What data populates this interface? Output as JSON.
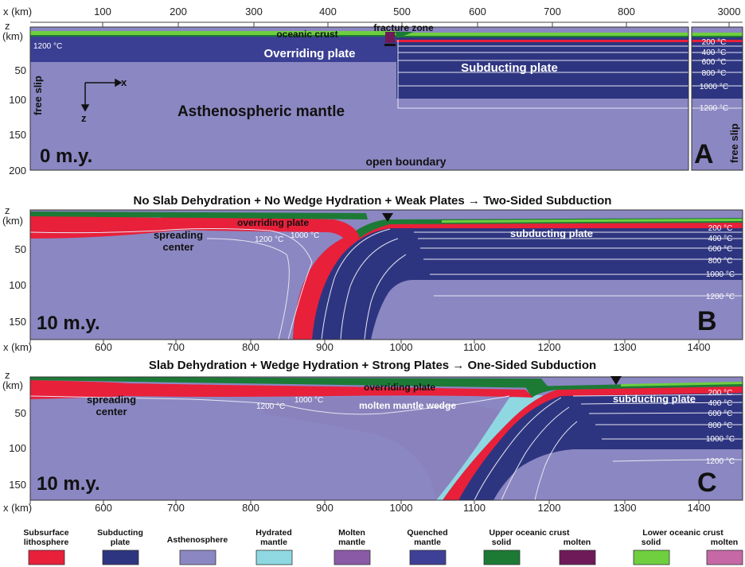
{
  "panel_a": {
    "x_axis_label": "x (km)",
    "x_ticks": [
      "100",
      "200",
      "300",
      "400",
      "500",
      "600",
      "700",
      "800"
    ],
    "x_tick_far": "3000",
    "z_axis_label_z": "z",
    "z_axis_label_km": "(km)",
    "z_ticks": [
      "50",
      "100",
      "150",
      "200"
    ],
    "labels": {
      "oceanic_crust": "oceanic crust",
      "fracture_zone": "fracture zone",
      "overriding_plate": "Overriding plate",
      "subducting_plate": "Subducting plate",
      "asthenospheric_mantle": "Asthenospheric mantle",
      "free_slip_left": "free slip",
      "free_slip_right": "free slip",
      "open_boundary": "open boundary",
      "axis_x": "x",
      "axis_z": "z",
      "temp_1200": "1200 °C"
    },
    "isotherms": [
      "200 °C",
      "400 °C",
      "600 °C",
      "800 °C",
      "1000 °C",
      "1200 °C"
    ],
    "time": "0 m.y.",
    "letter": "A"
  },
  "panel_b": {
    "title": "No Slab Dehydration + No Wedge Hydration + Weak Plates → Two-Sided Subduction",
    "z_axis_label_z": "z",
    "z_axis_label_km": "(km)",
    "z_ticks": [
      "50",
      "100",
      "150"
    ],
    "x_axis_label": "x (km)",
    "x_ticks": [
      "600",
      "700",
      "800",
      "900",
      "1000",
      "1100",
      "1200",
      "1300",
      "1400"
    ],
    "labels": {
      "spreading_center": "spreading center",
      "overriding_plate": "overriding plate",
      "subducting_plate": "subducting plate",
      "temp_1200": "1200 °C",
      "temp_1000": "1000 °C"
    },
    "isotherms": [
      "200 °C",
      "400 °C",
      "600 °C",
      "800 °C",
      "1000 °C",
      "1200 °C"
    ],
    "time": "10 m.y.",
    "letter": "B"
  },
  "panel_c": {
    "title": "Slab Dehydration + Wedge Hydration + Strong Plates → One-Sided Subduction",
    "z_axis_label_z": "z",
    "z_axis_label_km": "(km)",
    "z_ticks": [
      "50",
      "100",
      "150"
    ],
    "x_axis_label": "x (km)",
    "x_ticks": [
      "600",
      "700",
      "800",
      "900",
      "1000",
      "1100",
      "1200",
      "1300",
      "1400"
    ],
    "labels": {
      "spreading_center": "spreading center",
      "overriding_plate": "overriding plate",
      "molten_mantle_wedge": "molten mantle wedge",
      "subducting_plate": "subducting plate",
      "temp_1200": "1200 °C",
      "temp_1000": "1000 °C"
    },
    "isotherms": [
      "200 °C",
      "400 °C",
      "600 °C",
      "800 °C",
      "1000 °C",
      "1200 °C"
    ],
    "time": "10 m.y.",
    "letter": "C"
  },
  "legend": [
    {
      "line1": "Subsurface",
      "line2": "lithosphere",
      "color": "#e8203a"
    },
    {
      "line1": "Subducting",
      "line2": "plate",
      "color": "#2e3580"
    },
    {
      "line1": "Asthenosphere",
      "line2": "",
      "color": "#8b87c2"
    },
    {
      "line1": "Hydrated",
      "line2": "mantle",
      "color": "#8fd8e2"
    },
    {
      "line1": "Molten",
      "line2": "mantle",
      "color": "#8a5aa6"
    },
    {
      "line1": "Quenched",
      "line2": "mantle",
      "color": "#3e3f96"
    },
    {
      "line1": "Upper oceanic crust",
      "line2": "solid",
      "color": "#1c7a35"
    },
    {
      "line1": "",
      "line2": "molten",
      "color": "#6e1a58"
    },
    {
      "line1": "Lower oceanic crust",
      "line2": "solid",
      "color": "#6fcf3f"
    },
    {
      "line1": "",
      "line2": "molten",
      "color": "#c768a6"
    }
  ],
  "colors": {
    "asthenosphere": "#8b87c2",
    "plate": "#2e3580",
    "overriding": "#3b3f93",
    "lithosphere_red": "#e8203a",
    "upper_crust": "#1c7a35",
    "lower_crust": "#6fcf3f",
    "isotherm": "#e6e6f2"
  }
}
